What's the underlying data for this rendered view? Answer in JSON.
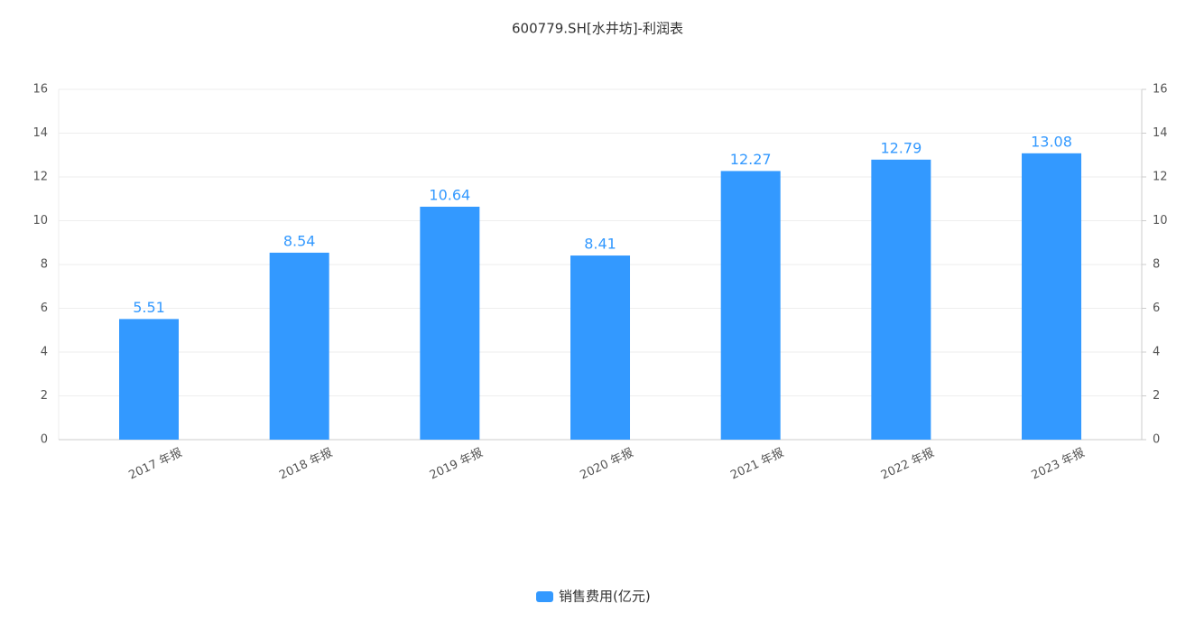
{
  "chart_data": {
    "type": "bar",
    "title": "600779.SH[水井坊]-利润表",
    "categories": [
      "2017 年报",
      "2018 年报",
      "2019 年报",
      "2020 年报",
      "2021 年报",
      "2022 年报",
      "2023 年报"
    ],
    "series": [
      {
        "name": "销售费用(亿元)",
        "color": "#3399ff",
        "values": [
          5.51,
          8.54,
          10.64,
          8.41,
          12.27,
          12.79,
          13.08
        ]
      }
    ],
    "ylim": [
      0,
      16
    ],
    "yticks": [
      0,
      2,
      4,
      6,
      8,
      10,
      12,
      14,
      16
    ],
    "y2lim": [
      0,
      16
    ],
    "y2ticks": [
      0,
      2,
      4,
      6,
      8,
      10,
      12,
      14,
      16
    ],
    "grid": true,
    "legend": "bottom"
  }
}
